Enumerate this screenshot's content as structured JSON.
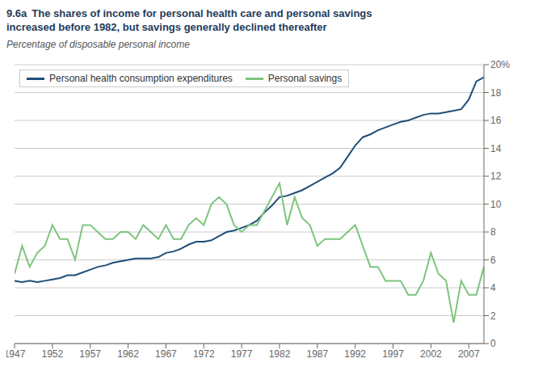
{
  "chart_data": {
    "type": "line",
    "title_number": "9.6a",
    "title": "The shares of income for personal health care and personal savings\nincreased before 1982, but savings generally declined thereafter",
    "subtitle": "Percentage of disposable personal income",
    "x": [
      1947,
      1948,
      1949,
      1950,
      1951,
      1952,
      1953,
      1954,
      1955,
      1956,
      1957,
      1958,
      1959,
      1960,
      1961,
      1962,
      1963,
      1964,
      1965,
      1966,
      1967,
      1968,
      1969,
      1970,
      1971,
      1972,
      1973,
      1974,
      1975,
      1976,
      1977,
      1978,
      1979,
      1980,
      1981,
      1982,
      1983,
      1984,
      1985,
      1986,
      1987,
      1988,
      1989,
      1990,
      1991,
      1992,
      1993,
      1994,
      1995,
      1996,
      1997,
      1998,
      1999,
      2000,
      2001,
      2002,
      2003,
      2004,
      2005,
      2006,
      2007,
      2008,
      2009
    ],
    "series": [
      {
        "name": "Personal health consumption expenditures",
        "color": "#1f4e79",
        "values": [
          4.5,
          4.4,
          4.5,
          4.4,
          4.5,
          4.6,
          4.7,
          4.9,
          4.9,
          5.1,
          5.3,
          5.5,
          5.6,
          5.8,
          5.9,
          6.0,
          6.1,
          6.1,
          6.1,
          6.2,
          6.5,
          6.6,
          6.8,
          7.1,
          7.3,
          7.3,
          7.4,
          7.7,
          8.0,
          8.1,
          8.3,
          8.5,
          8.8,
          9.4,
          9.9,
          10.5,
          10.6,
          10.8,
          11.0,
          11.3,
          11.6,
          11.9,
          12.2,
          12.6,
          13.4,
          14.2,
          14.8,
          15.0,
          15.3,
          15.5,
          15.7,
          15.9,
          16.0,
          16.2,
          16.4,
          16.5,
          16.5,
          16.6,
          16.7,
          16.8,
          17.5,
          18.8,
          19.1
        ]
      },
      {
        "name": "Personal savings",
        "color": "#7dc47d",
        "values": [
          5.0,
          7.0,
          5.5,
          6.5,
          7.0,
          8.5,
          7.5,
          7.5,
          6.0,
          8.5,
          8.5,
          8.0,
          7.5,
          7.5,
          8.0,
          8.0,
          7.5,
          8.5,
          8.0,
          7.5,
          8.5,
          7.5,
          7.5,
          8.5,
          9.0,
          8.5,
          10.0,
          10.5,
          10.0,
          8.5,
          8.0,
          8.5,
          8.5,
          9.5,
          10.5,
          11.5,
          8.5,
          10.5,
          9.0,
          8.5,
          7.0,
          7.5,
          7.5,
          7.5,
          8.0,
          8.5,
          7.0,
          5.5,
          5.5,
          4.5,
          4.5,
          4.5,
          3.5,
          3.5,
          4.5,
          6.5,
          5.0,
          4.5,
          1.5,
          4.5,
          3.5,
          3.5,
          5.5
        ]
      }
    ],
    "xlim": [
      1947,
      2009
    ],
    "xticks": [
      1947,
      1952,
      1957,
      1962,
      1967,
      1972,
      1977,
      1982,
      1987,
      1992,
      1997,
      2002,
      2007
    ],
    "ylim": [
      0,
      20
    ],
    "yticks": [
      0,
      2,
      4,
      6,
      8,
      10,
      12,
      14,
      16,
      18,
      {
        "value": 20,
        "label": "20%"
      }
    ],
    "grid": true,
    "legend": "upper left"
  }
}
